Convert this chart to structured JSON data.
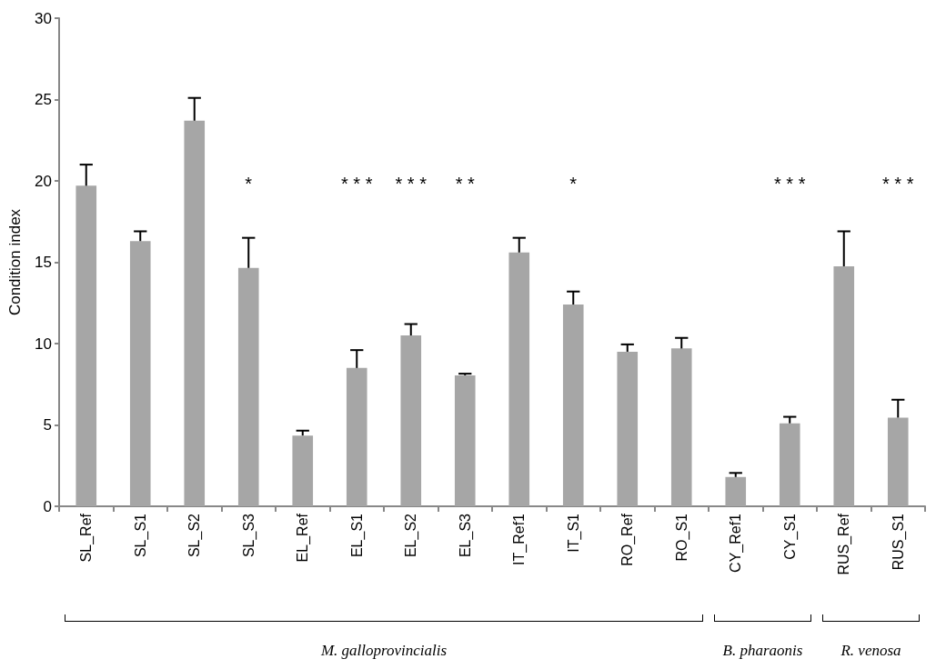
{
  "chart_data": {
    "type": "bar",
    "ylabel": "Condition index",
    "categories": [
      "SL_Ref",
      "SL_S1",
      "SL_S2",
      "SL_S3",
      "EL_Ref",
      "EL_S1",
      "EL_S2",
      "EL_S3",
      "IT_Ref1",
      "IT_S1",
      "RO_Ref",
      "RO_S1",
      "CY_Ref1",
      "CY_S1",
      "RUS_Ref",
      "RUS_S1"
    ],
    "values": [
      19.7,
      16.3,
      23.7,
      14.65,
      4.35,
      8.5,
      10.5,
      8.05,
      15.6,
      12.4,
      9.5,
      9.7,
      1.8,
      5.1,
      14.75,
      5.45
    ],
    "errors": [
      [
        19.7,
        21.0
      ],
      [
        16.3,
        16.9
      ],
      [
        23.7,
        25.1
      ],
      [
        14.65,
        16.5
      ],
      [
        4.35,
        4.65
      ],
      [
        8.5,
        9.6
      ],
      [
        10.5,
        11.2
      ],
      [
        8.05,
        8.15
      ],
      [
        15.6,
        16.5
      ],
      [
        12.4,
        13.2
      ],
      [
        9.5,
        9.95
      ],
      [
        9.7,
        10.35
      ],
      [
        1.8,
        2.05
      ],
      [
        5.1,
        5.5
      ],
      [
        14.75,
        16.9
      ],
      [
        5.45,
        6.55
      ]
    ],
    "color": "#a6a6a6",
    "ylim": [
      0,
      30
    ],
    "yticks": [
      0,
      5,
      10,
      15,
      20,
      25,
      30
    ],
    "grid": false,
    "annotations": [
      "*",
      "* * *",
      "* * *",
      "* *",
      "*",
      "* * *",
      "* * *",
      "M. galloprovincialis",
      "B. pharaonis",
      "R. venosa"
    ]
  }
}
